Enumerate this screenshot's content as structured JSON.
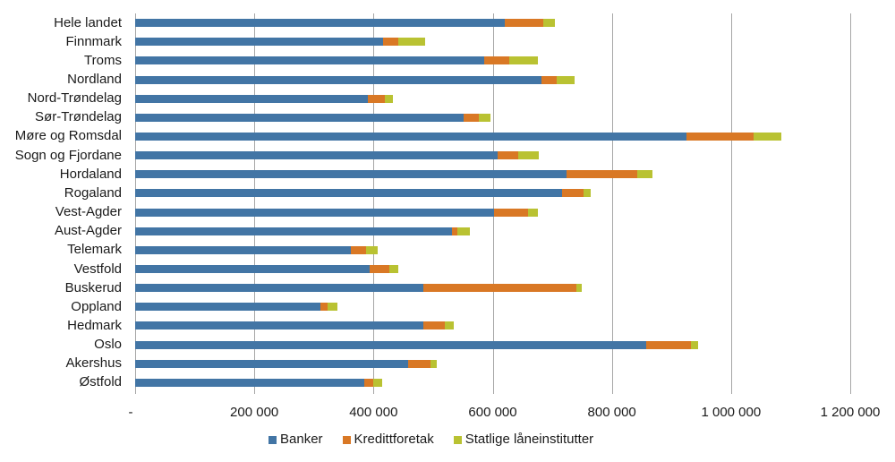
{
  "chart_data": {
    "type": "bar",
    "orientation": "horizontal",
    "stacked": true,
    "title": "",
    "xlabel": "",
    "ylabel": "",
    "xlim": [
      0,
      1200000
    ],
    "x_ticks": [
      0,
      200000,
      400000,
      600000,
      800000,
      1000000,
      1200000
    ],
    "x_tick_labels": [
      "-",
      "200 000",
      "400 000",
      "600 000",
      "800 000",
      "1 000 000",
      "1 200 000"
    ],
    "grid": true,
    "legend_position": "bottom",
    "categories": [
      "Hele landet",
      "Finnmark",
      "Troms",
      "Nordland",
      "Nord-Trøndelag",
      "Sør-Trøndelag",
      "Møre og Romsdal",
      "Sogn og Fjordane",
      "Hordaland",
      "Rogaland",
      "Vest-Agder",
      "Aust-Agder",
      "Telemark",
      "Vestfold",
      "Buskerud",
      "Oppland",
      "Hedmark",
      "Oslo",
      "Akershus",
      "Østfold"
    ],
    "series": [
      {
        "name": "Banker",
        "color": "#4275a5",
        "values": [
          621000,
          416000,
          586000,
          682000,
          390000,
          551000,
          925000,
          608000,
          724000,
          717000,
          602000,
          532000,
          362000,
          394000,
          484000,
          311000,
          484000,
          858000,
          458000,
          385000
        ]
      },
      {
        "name": "Kredittforetak",
        "color": "#d97825",
        "values": [
          64000,
          26000,
          42000,
          26000,
          29000,
          26000,
          113000,
          35000,
          118000,
          35000,
          58000,
          9000,
          26000,
          32000,
          256000,
          12000,
          35000,
          74000,
          38000,
          15000
        ]
      },
      {
        "name": "Statlige låneinstitutter",
        "color": "#b9c232",
        "values": [
          19000,
          45000,
          48000,
          29000,
          14000,
          19000,
          47000,
          35000,
          26000,
          13000,
          16000,
          20000,
          19000,
          15000,
          10000,
          16000,
          16000,
          13000,
          10000,
          14000
        ]
      }
    ]
  },
  "legend": {
    "items": [
      {
        "label": "Banker",
        "color": "#4275a5"
      },
      {
        "label": "Kredittforetak",
        "color": "#d97825"
      },
      {
        "label": "Statlige låneinstitutter",
        "color": "#b9c232"
      }
    ]
  }
}
